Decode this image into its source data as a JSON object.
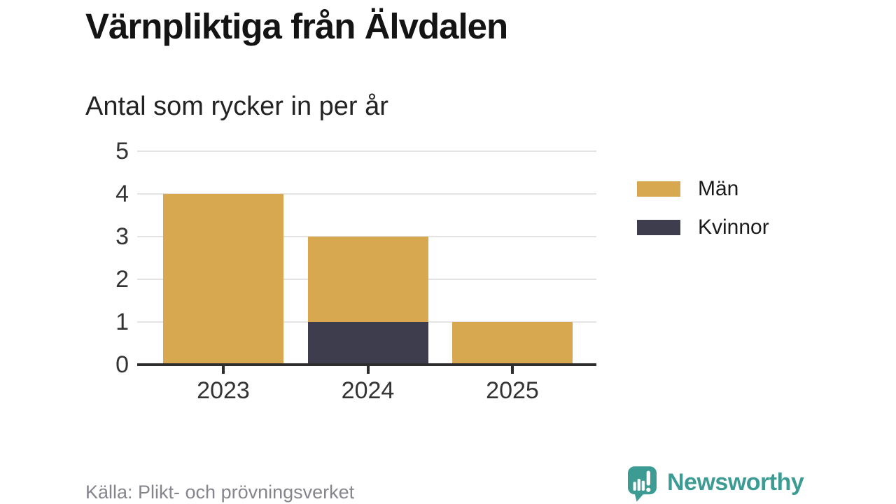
{
  "header": {
    "title": "Värnpliktiga från Älvdalen",
    "subtitle": "Antal som rycker in per år"
  },
  "chart_data": {
    "type": "bar",
    "stacked": true,
    "title": "Värnpliktiga från Älvdalen",
    "subtitle": "Antal som rycker in per år",
    "categories": [
      "2023",
      "2024",
      "2025"
    ],
    "series": [
      {
        "name": "Män",
        "color": "#D7A84F",
        "values": [
          4,
          2,
          1
        ]
      },
      {
        "name": "Kvinnor",
        "color": "#3E3D4D",
        "values": [
          0,
          1,
          0
        ]
      }
    ],
    "totals": [
      4,
      3,
      1
    ],
    "xlabel": "",
    "ylabel": "",
    "ylim": [
      0,
      5
    ],
    "yticks": [
      0,
      1,
      2,
      3,
      4,
      5
    ],
    "grid": "horizontal",
    "legend_position": "right"
  },
  "footer": {
    "source": "Källa: Plikt- och prövningsverket",
    "brand": {
      "name": "Newsworthy",
      "color": "#3C9C94",
      "icon": "newsworthy-speech-bubble-bar-chart-icon"
    }
  },
  "colors": {
    "background": "#FFFFFF",
    "title": "#141414",
    "subtitle": "#232323",
    "axis_labels": "#333333",
    "axis_line": "#2E2E2E",
    "gridline": "#E4E4E4",
    "source_text": "#85858D",
    "brand_teal": "#3C9C94"
  }
}
